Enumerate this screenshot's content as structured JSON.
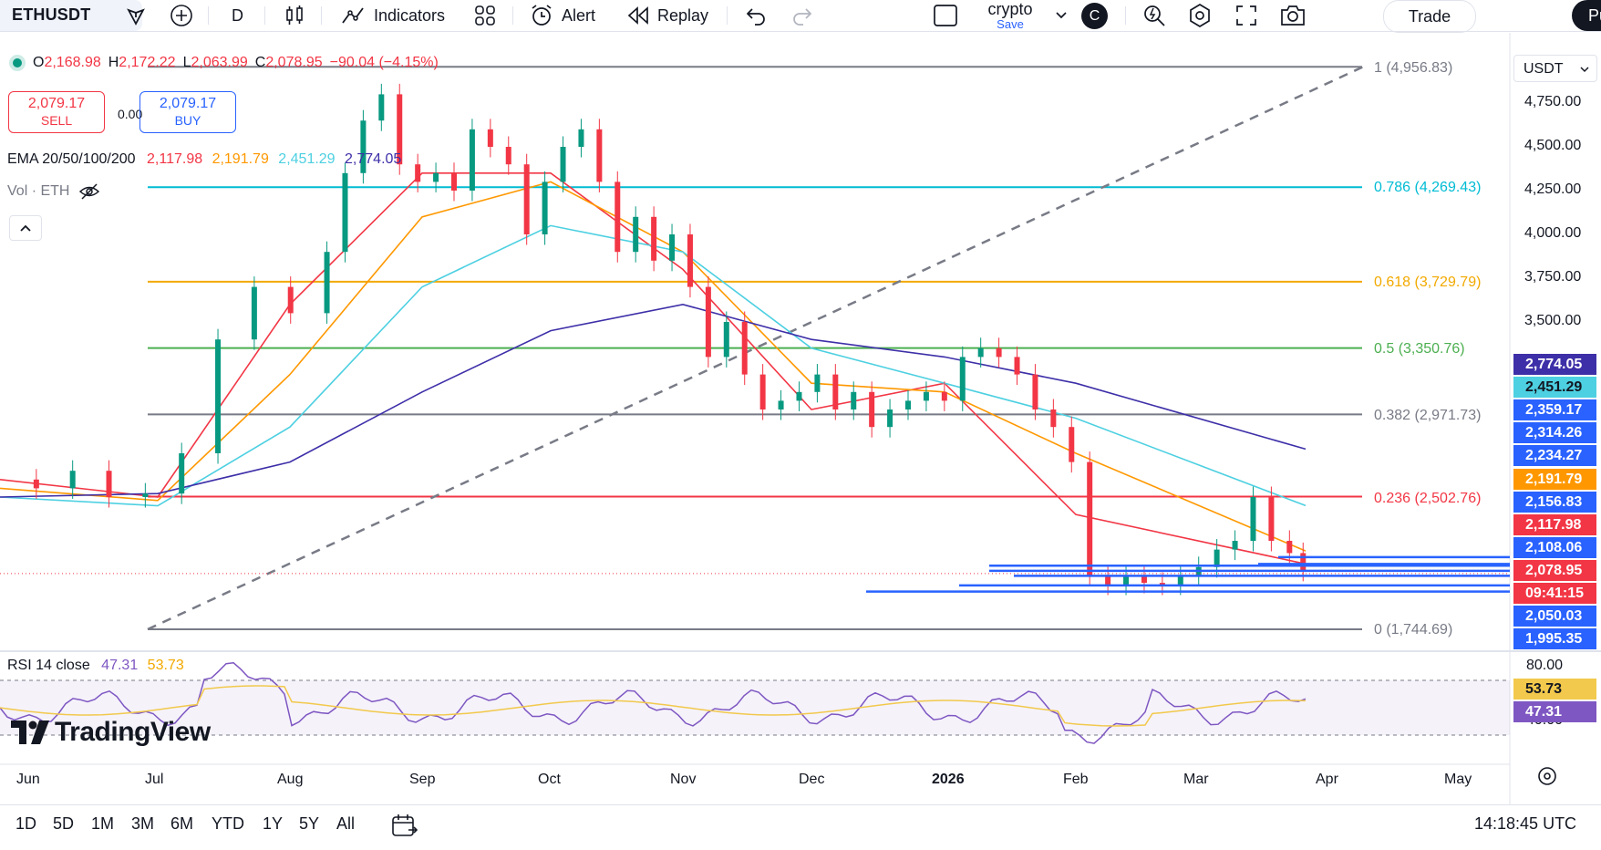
{
  "toolbar": {
    "symbol": "ETHUSDT",
    "interval": "D",
    "indicators_label": "Indicators",
    "alert_label": "Alert",
    "replay_label": "Replay",
    "layout_name": "crypto",
    "layout_sub": "Save",
    "avatar_letter": "C",
    "trade_label": "Trade",
    "publish_label": "Pu"
  },
  "ohlc": {
    "open_label": "O",
    "open": "2,168.98",
    "high_label": "H",
    "high": "2,172.22",
    "low_label": "L",
    "low": "2,063.99",
    "close_label": "C",
    "close": "2,078.95",
    "change": "−90.04 (−4.15%)"
  },
  "trade": {
    "sell_price": "2,079.17",
    "sell_label": "SELL",
    "spread": "0.00",
    "buy_price": "2,079.17",
    "buy_label": "BUY"
  },
  "ema": {
    "label": "EMA 20/50/100/200",
    "v20": "2,117.98",
    "v50": "2,191.79",
    "v100": "2,451.29",
    "v200": "2,774.05",
    "c20": "#f23645",
    "c50": "#ff9800",
    "c100": "#4dd0e1",
    "c200": "#5c4dc9"
  },
  "vol": {
    "label": "Vol · ETH"
  },
  "currency": "USDT",
  "price_axis": [
    "4,750.00",
    "4,500.00",
    "4,250.00",
    "4,000.00",
    "3,750.00",
    "3,500.00"
  ],
  "price_tags": [
    {
      "text": "2,774.05",
      "bg": "#3d2fa8"
    },
    {
      "text": "2,451.29",
      "bg": "#4dd0e1"
    },
    {
      "text": "2,359.17",
      "bg": "#2962ff"
    },
    {
      "text": "2,314.26",
      "bg": "#2962ff"
    },
    {
      "text": "2,234.27",
      "bg": "#2962ff"
    },
    {
      "text": "2,191.79",
      "bg": "#ff9800"
    },
    {
      "text": "2,156.83",
      "bg": "#2962ff"
    },
    {
      "text": "2,117.98",
      "bg": "#f23645"
    },
    {
      "text": "2,108.06",
      "bg": "#2962ff"
    },
    {
      "text": "2,078.95",
      "bg": "#f23645"
    },
    {
      "text": "09:41:15",
      "bg": "#f23645"
    },
    {
      "text": "2,050.03",
      "bg": "#2962ff"
    },
    {
      "text": "1,995.35",
      "bg": "#2962ff"
    }
  ],
  "fib_levels": [
    {
      "label": "1 (4,956.83)",
      "color": "#787b86"
    },
    {
      "label": "0.786 (4,269.43)",
      "color": "#00bcd4"
    },
    {
      "label": "0.618 (3,729.79)",
      "color": "#f2a900"
    },
    {
      "label": "0.5 (3,350.76)",
      "color": "#4caf50"
    },
    {
      "label": "0.382 (2,971.73)",
      "color": "#787b86"
    },
    {
      "label": "0.236 (2,502.76)",
      "color": "#f23645"
    },
    {
      "label": "0 (1,744.69)",
      "color": "#787b86"
    }
  ],
  "rsi": {
    "label": "RSI 14 close",
    "value": "47.31",
    "ma": "53.73",
    "levels": [
      "80.00",
      "40.00"
    ],
    "tags": [
      {
        "text": "53.73",
        "bg": "#f2c94c"
      },
      {
        "text": "47.31",
        "bg": "#7e57c2"
      }
    ]
  },
  "time_axis": [
    "Jun",
    "Jul",
    "Aug",
    "Sep",
    "Oct",
    "Nov",
    "Dec",
    "2026",
    "Feb",
    "Mar",
    "Apr",
    "May"
  ],
  "brand": "TradingView",
  "ranges": [
    "1D",
    "5D",
    "1M",
    "3M",
    "6M",
    "YTD",
    "1Y",
    "5Y",
    "All"
  ],
  "clock": "14:18:45 UTC",
  "chart_data": {
    "type": "line",
    "title": "ETHUSDT",
    "interval": "D",
    "x": [
      "Jun",
      "Jul",
      "Aug",
      "Sep",
      "Oct",
      "Nov",
      "Dec",
      "2026",
      "Feb",
      "Mar"
    ],
    "series": [
      {
        "name": "EMA 20",
        "values": [
          2600,
          2500,
          3600,
          4350,
          4350,
          3800,
          3000,
          3150,
          2400,
          2118
        ]
      },
      {
        "name": "EMA 50",
        "values": [
          2550,
          2480,
          3200,
          4100,
          4300,
          3900,
          3150,
          3100,
          2750,
          2192
        ]
      },
      {
        "name": "EMA 100",
        "values": [
          2500,
          2450,
          2900,
          3700,
          4050,
          3900,
          3350,
          3150,
          2950,
          2451
        ]
      },
      {
        "name": "EMA 200",
        "values": [
          2500,
          2520,
          2700,
          3100,
          3450,
          3600,
          3400,
          3300,
          3150,
          2774
        ]
      }
    ],
    "ylim": [
      1995,
      4956
    ],
    "fibonacci": [
      4956.83,
      4269.43,
      3729.79,
      3350.76,
      2971.73,
      2502.76,
      1744.69
    ]
  }
}
